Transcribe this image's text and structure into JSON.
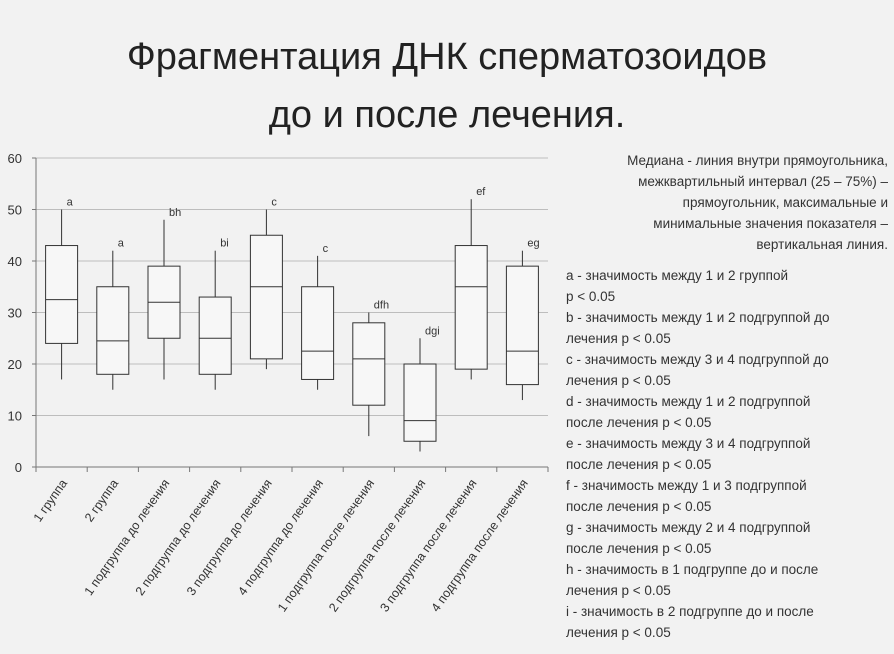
{
  "title_lines": [
    "Фрагментация ДНК  сперматозоидов",
    "до и после лечения."
  ],
  "chart_data": {
    "type": "box",
    "ylim": [
      0,
      60
    ],
    "yticks": [
      0,
      10,
      20,
      30,
      40,
      50,
      60
    ],
    "grid": true,
    "categories": [
      "1 группа",
      "2 группа",
      "1 подгруппа до лечения",
      "2 подгруппа до лечения",
      "3 подгруппа до лечения",
      "4 подгруппа до лечения",
      "1 подгруппа после лечения",
      "2 подгруппа после лечения",
      "3 подгруппа после лечения",
      "4 подгруппа после лечения"
    ],
    "boxes": [
      {
        "min": 17,
        "q1": 24,
        "median": 32.5,
        "q3": 43,
        "max": 50,
        "label": "a"
      },
      {
        "min": 15,
        "q1": 18,
        "median": 24.5,
        "q3": 35,
        "max": 42,
        "label": "a"
      },
      {
        "min": 17,
        "q1": 25,
        "median": 32,
        "q3": 39,
        "max": 48,
        "label": "bh"
      },
      {
        "min": 15,
        "q1": 18,
        "median": 25,
        "q3": 33,
        "max": 42,
        "label": "bi"
      },
      {
        "min": 19,
        "q1": 21,
        "median": 35,
        "q3": 45,
        "max": 50,
        "label": "c"
      },
      {
        "min": 15,
        "q1": 17,
        "median": 22.5,
        "q3": 35,
        "max": 41,
        "label": "c"
      },
      {
        "min": 6,
        "q1": 12,
        "median": 21,
        "q3": 28,
        "max": 30,
        "label": "dfh"
      },
      {
        "min": 3,
        "q1": 5,
        "median": 9,
        "q3": 20,
        "max": 25,
        "label": "dgi"
      },
      {
        "min": 17,
        "q1": 19,
        "median": 35,
        "q3": 43,
        "max": 52,
        "label": "ef"
      },
      {
        "min": 13,
        "q1": 16,
        "median": 22.5,
        "q3": 39,
        "max": 42,
        "label": "eg"
      }
    ]
  },
  "notes": {
    "description_lines": [
      "Медиана - линия внутри прямоугольника,",
      "межквартильный интервал (25 – 75%) –",
      "прямоугольник, максимальные и",
      "минимальные значения показателя –",
      "вертикальная линия."
    ],
    "significance_lines": [
      "a - значимость между 1 и 2 группой",
      "p < 0.05",
      "b - значимость между 1 и 2 подгруппой до",
      "лечения p < 0.05",
      "c - значимость между 3 и 4 подгруппой до",
      "лечения p < 0.05",
      "d - значимость между 1 и 2 подгруппой",
      "после лечения p < 0.05",
      "e - значимость между 3 и 4 подгруппой",
      "после лечения p < 0.05",
      "f - значимость между 1 и 3 подгруппой",
      "после лечения p < 0.05",
      "g - значимость между 2 и 4 подгруппой",
      "после лечения p < 0.05",
      "h - значимость в 1 подгруппе до и после",
      "лечения p < 0.05",
      "i - значимость в 2 подгруппе до и после",
      "лечения p < 0.05"
    ]
  }
}
